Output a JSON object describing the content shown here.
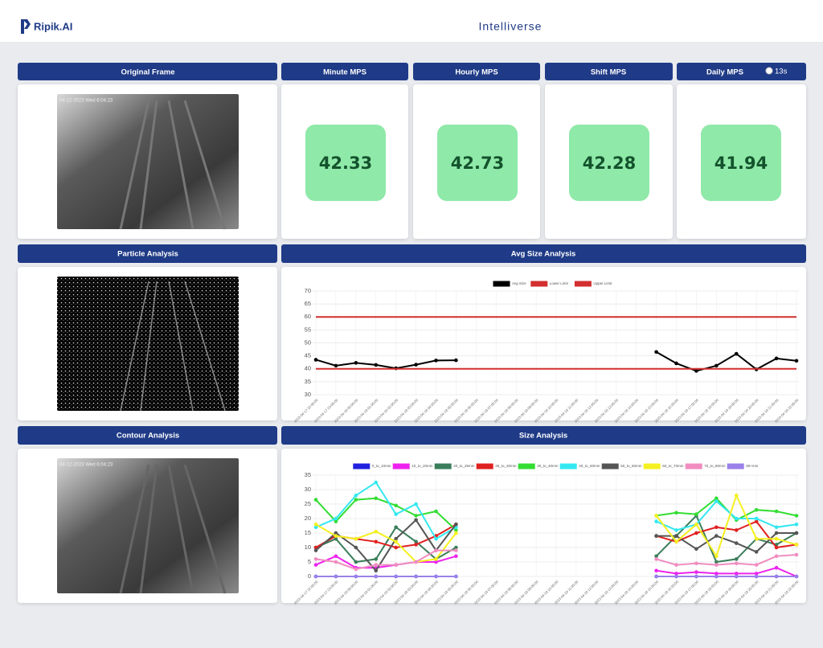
{
  "header": {
    "logo": "Ripik.AI",
    "brand": "Intelliverse"
  },
  "frames": {
    "original": {
      "title": "Original Frame",
      "timestamp": "04-12-2023 Wed 6:04:23"
    },
    "particle": {
      "title": "Particle Analysis"
    },
    "contour": {
      "title": "Contour Analysis",
      "timestamp": "04-12-2023 Wed 6:04:23"
    }
  },
  "metrics": [
    {
      "title": "Minute MPS",
      "value": 42.33
    },
    {
      "title": "Hourly MPS",
      "value": 42.73
    },
    {
      "title": "Shift MPS",
      "value": 42.28
    },
    {
      "title": "Daily MPS",
      "value": 41.94
    }
  ],
  "timer": "13s",
  "chart_data": [
    {
      "type": "line",
      "title": "Avg Size Analysis",
      "categories": [
        "2023-04-17 22:00:00",
        "2023-04-17 23:00:00",
        "2023-04-18 00:00:00",
        "2023-04-18 01:00:00",
        "2023-04-18 02:00:00",
        "2023-04-18 03:00:00",
        "2023-04-18 04:00:00",
        "2023-04-18 05:00:00",
        "2023-04-18 06:00:00",
        "2023-04-18 07:00:00",
        "2023-04-18 08:00:00",
        "2023-04-18 09:00:00",
        "2023-04-18 10:00:00",
        "2023-04-18 11:00:00",
        "2023-04-18 12:00:00",
        "2023-04-18 13:00:00",
        "2023-04-18 14:00:00",
        "2023-04-18 15:00:00",
        "2023-04-18 16:00:00",
        "2023-04-18 17:00:00",
        "2023-04-18 18:00:00",
        "2023-04-18 19:00:00",
        "2023-04-18 20:00:00",
        "2023-04-18 21:00:00",
        "2023-04-18 22:00:00"
      ],
      "series": [
        {
          "name": "Avg Size",
          "color": "#000000",
          "markers": true,
          "values": [
            43.5,
            41.2,
            42.3,
            41.5,
            40.2,
            41.6,
            43.2,
            43.3,
            null,
            null,
            null,
            null,
            null,
            null,
            null,
            null,
            null,
            46.5,
            42.1,
            39.2,
            41.2,
            45.8,
            39.8,
            44.0,
            43.1
          ]
        },
        {
          "name": "Lower Limit",
          "color": "#d32f2f",
          "markers": false,
          "values": [
            40,
            40,
            40,
            40,
            40,
            40,
            40,
            40,
            40,
            40,
            40,
            40,
            40,
            40,
            40,
            40,
            40,
            40,
            40,
            40,
            40,
            40,
            40,
            40,
            40
          ]
        },
        {
          "name": "Upper Limit",
          "color": "#d32f2f",
          "markers": false,
          "values": [
            60,
            60,
            60,
            60,
            60,
            60,
            60,
            60,
            60,
            60,
            60,
            60,
            60,
            60,
            60,
            60,
            60,
            60,
            60,
            60,
            60,
            60,
            60,
            60,
            60
          ]
        }
      ],
      "ylim": [
        30,
        70
      ],
      "yticks": [
        30,
        35,
        40,
        45,
        50,
        55,
        60,
        65,
        70
      ],
      "grid": true
    },
    {
      "type": "line",
      "title": "Size Analysis",
      "categories": [
        "2023-04-17 22:00:00",
        "2023-04-17 23:00:00",
        "2023-04-18 00:00:00",
        "2023-04-18 01:00:00",
        "2023-04-18 02:00:00",
        "2023-04-18 03:00:00",
        "2023-04-18 04:00:00",
        "2023-04-18 05:00:00",
        "2023-04-18 06:00:00",
        "2023-04-18 07:00:00",
        "2023-04-18 08:00:00",
        "2023-04-18 09:00:00",
        "2023-04-18 10:00:00",
        "2023-04-18 11:00:00",
        "2023-04-18 12:00:00",
        "2023-04-18 13:00:00",
        "2023-04-18 14:00:00",
        "2023-04-18 15:00:00",
        "2023-04-18 16:00:00",
        "2023-04-18 17:00:00",
        "2023-04-18 18:00:00",
        "2023-04-18 19:00:00",
        "2023-04-18 20:00:00",
        "2023-04-18 21:00:00",
        "2023-04-18 22:00:00"
      ],
      "series": [
        {
          "name": "0_to_10mm",
          "color": "#2020e0",
          "markers": true,
          "values": [
            0,
            0,
            0,
            0,
            0,
            0,
            0,
            0,
            null,
            null,
            null,
            null,
            null,
            null,
            null,
            null,
            null,
            0,
            0,
            0,
            0,
            0,
            0,
            0,
            0
          ]
        },
        {
          "name": "10_to_20mm",
          "color": "#ee22ee",
          "markers": true,
          "values": [
            4,
            7,
            3,
            3,
            4,
            5,
            5,
            7,
            null,
            null,
            null,
            null,
            null,
            null,
            null,
            null,
            null,
            2,
            1,
            1.5,
            1,
            1,
            1,
            3,
            0
          ]
        },
        {
          "name": "20_to_25mm",
          "color": "#3a7d5a",
          "markers": true,
          "values": [
            10,
            13,
            5,
            6,
            17,
            12,
            6,
            10,
            null,
            null,
            null,
            null,
            null,
            null,
            null,
            null,
            null,
            7,
            14,
            21,
            5,
            6,
            13,
            11,
            15
          ]
        },
        {
          "name": "25_to_30mm",
          "color": "#e02020",
          "markers": true,
          "values": [
            10,
            14,
            13,
            12,
            10,
            11,
            14,
            18,
            null,
            null,
            null,
            null,
            null,
            null,
            null,
            null,
            null,
            14,
            12,
            15,
            17,
            16,
            19,
            10,
            11
          ]
        },
        {
          "name": "30_to_40mm",
          "color": "#33dd33",
          "markers": true,
          "values": [
            26.5,
            19,
            26.5,
            27,
            24.5,
            21,
            22.5,
            16,
            null,
            null,
            null,
            null,
            null,
            null,
            null,
            null,
            null,
            21,
            22,
            21.5,
            27,
            19.5,
            23,
            22.5,
            21
          ]
        },
        {
          "name": "40_to_50mm",
          "color": "#33e8f0",
          "markers": true,
          "values": [
            17,
            20,
            28,
            32.5,
            21.5,
            25,
            13,
            17,
            null,
            null,
            null,
            null,
            null,
            null,
            null,
            null,
            null,
            19,
            16,
            18,
            26,
            20,
            20,
            17,
            18
          ]
        },
        {
          "name": "50_to_60mm",
          "color": "#555555",
          "markers": true,
          "values": [
            9,
            15,
            10,
            2,
            13,
            19.5,
            9,
            18,
            null,
            null,
            null,
            null,
            null,
            null,
            null,
            null,
            null,
            14,
            14,
            9.5,
            14,
            11.5,
            8.5,
            15,
            15
          ]
        },
        {
          "name": "60_to_70mm",
          "color": "#f5f020",
          "markers": true,
          "values": [
            18,
            14,
            13,
            15.5,
            12,
            5,
            6,
            15,
            null,
            null,
            null,
            null,
            null,
            null,
            null,
            null,
            null,
            21,
            12,
            18,
            7,
            28,
            13,
            13,
            11
          ]
        },
        {
          "name": "70_to_80mm",
          "color": "#f08cc0",
          "markers": true,
          "values": [
            6,
            5,
            2.5,
            4,
            4,
            5,
            9,
            9,
            null,
            null,
            null,
            null,
            null,
            null,
            null,
            null,
            null,
            6,
            4,
            4.5,
            4,
            4.5,
            4,
            7,
            7.5
          ]
        },
        {
          "name": "80+mm",
          "color": "#9a80e8",
          "markers": true,
          "values": [
            0,
            0,
            0,
            0,
            0,
            0,
            0,
            0,
            null,
            null,
            null,
            null,
            null,
            null,
            null,
            null,
            null,
            0,
            0,
            0,
            0,
            0,
            0,
            0,
            0
          ]
        }
      ],
      "ylim": [
        0,
        35
      ],
      "yticks": [
        0,
        5,
        10,
        15,
        20,
        25,
        30,
        35
      ],
      "grid": true
    }
  ]
}
